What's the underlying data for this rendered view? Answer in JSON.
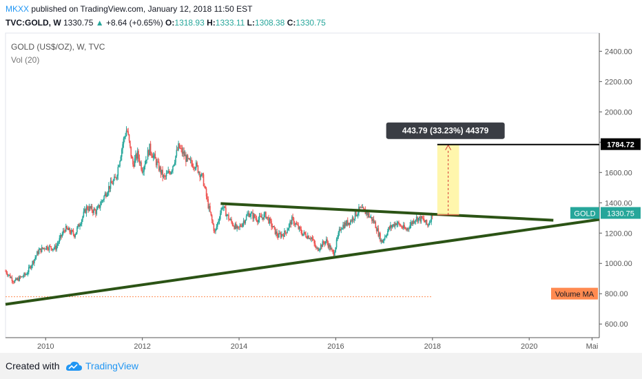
{
  "header": {
    "user": "MKXX",
    "published": "published on TradingView.com, January 12, 2018 11:50 EST",
    "symbol": "TVC:GOLD, W",
    "last": "1330.75",
    "change_arrow": "▲",
    "change": "+8.64 (+0.65%)",
    "o_label": "O:",
    "o_value": "1318.93",
    "h_label": "H:",
    "h_value": "1333.11",
    "l_label": "L:",
    "l_value": "1308.38",
    "c_label": "C:",
    "c_value": "1330.75"
  },
  "legend": {
    "series": "GOLD (US$/OZ), W, TVC",
    "volume": "Vol (20)"
  },
  "footer": {
    "created": "Created with",
    "brand": "TradingView"
  },
  "chart_data": {
    "type": "candlestick",
    "price_axis": {
      "labels": [
        "2400.00",
        "2200.00",
        "2000.00",
        "1800.00",
        "1600.00",
        "1400.00",
        "1200.00",
        "1000.00",
        "800.00",
        "600.00"
      ],
      "values": [
        2400,
        2200,
        2000,
        1800,
        1600,
        1400,
        1200,
        1000,
        800,
        600
      ],
      "range": [
        510,
        2520
      ]
    },
    "time_axis": {
      "labels": [
        "2010",
        "2012",
        "2014",
        "2016",
        "2018",
        "2020",
        "Mai"
      ],
      "years": [
        2010,
        2012,
        2014,
        2016,
        2018,
        2020,
        2021.3
      ],
      "range": [
        2009.17,
        2021.45
      ]
    },
    "price_path": [
      [
        2009.17,
        950
      ],
      [
        2009.35,
        880
      ],
      [
        2009.6,
        930
      ],
      [
        2009.85,
        1080
      ],
      [
        2010.0,
        1110
      ],
      [
        2010.2,
        1100
      ],
      [
        2010.4,
        1230
      ],
      [
        2010.6,
        1190
      ],
      [
        2010.85,
        1370
      ],
      [
        2011.05,
        1340
      ],
      [
        2011.3,
        1500
      ],
      [
        2011.45,
        1560
      ],
      [
        2011.6,
        1800
      ],
      [
        2011.68,
        1890
      ],
      [
        2011.8,
        1650
      ],
      [
        2011.9,
        1720
      ],
      [
        2012.0,
        1620
      ],
      [
        2012.15,
        1760
      ],
      [
        2012.3,
        1660
      ],
      [
        2012.45,
        1560
      ],
      [
        2012.6,
        1620
      ],
      [
        2012.75,
        1770
      ],
      [
        2012.95,
        1670
      ],
      [
        2013.1,
        1650
      ],
      [
        2013.25,
        1560
      ],
      [
        2013.35,
        1400
      ],
      [
        2013.5,
        1200
      ],
      [
        2013.65,
        1380
      ],
      [
        2013.8,
        1290
      ],
      [
        2013.97,
        1220
      ],
      [
        2014.2,
        1330
      ],
      [
        2014.4,
        1290
      ],
      [
        2014.55,
        1320
      ],
      [
        2014.8,
        1180
      ],
      [
        2014.95,
        1200
      ],
      [
        2015.1,
        1290
      ],
      [
        2015.3,
        1200
      ],
      [
        2015.5,
        1170
      ],
      [
        2015.6,
        1090
      ],
      [
        2015.8,
        1150
      ],
      [
        2015.95,
        1060
      ],
      [
        2016.1,
        1240
      ],
      [
        2016.3,
        1280
      ],
      [
        2016.5,
        1360
      ],
      [
        2016.65,
        1330
      ],
      [
        2016.8,
        1270
      ],
      [
        2016.95,
        1140
      ],
      [
        2017.1,
        1230
      ],
      [
        2017.25,
        1270
      ],
      [
        2017.45,
        1220
      ],
      [
        2017.65,
        1300
      ],
      [
        2017.8,
        1290
      ],
      [
        2017.9,
        1250
      ],
      [
        2018.0,
        1331
      ]
    ],
    "trendlines": [
      {
        "name": "upper",
        "points": [
          [
            2013.62,
            1395
          ],
          [
            2020.5,
            1285
          ]
        ]
      },
      {
        "name": "lower",
        "points": [
          [
            2009.17,
            730
          ],
          [
            2021.45,
            1290
          ]
        ]
      }
    ],
    "target_line": {
      "value": 1784.72,
      "label": "1784.72",
      "from": 2018.1
    },
    "measure_box": {
      "x": [
        2018.1,
        2018.55
      ],
      "y": [
        1320,
        1784.72
      ],
      "label": "443.79 (33.23%) 44379"
    },
    "volume_ma": {
      "value": 780,
      "label": "Volume MA",
      "x_end": 2018.0
    },
    "current_price": {
      "symbol": "GOLD",
      "value": "1330.75"
    },
    "colors": {
      "up": "#26a69a",
      "down": "#ef5350",
      "trendline": "#2b5315",
      "measure_fill": "#fff59d",
      "measure_line": "#d32f2f",
      "volume_ma": "#ff8a50",
      "price_tag": "#26a69a"
    }
  }
}
